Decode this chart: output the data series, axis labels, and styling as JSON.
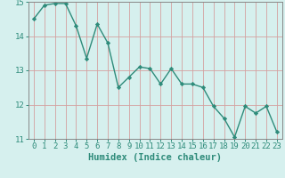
{
  "x": [
    0,
    1,
    2,
    3,
    4,
    5,
    6,
    7,
    8,
    9,
    10,
    11,
    12,
    13,
    14,
    15,
    16,
    17,
    18,
    19,
    20,
    21,
    22,
    23
  ],
  "y": [
    14.5,
    14.9,
    14.95,
    14.95,
    14.3,
    13.35,
    14.35,
    13.8,
    12.5,
    12.8,
    13.1,
    13.05,
    12.6,
    13.05,
    12.6,
    12.6,
    12.5,
    11.95,
    11.6,
    11.05,
    11.95,
    11.75,
    11.95,
    11.2
  ],
  "line_color": "#2e8b7a",
  "marker": "D",
  "marker_size": 2.2,
  "bg_color": "#d6f0ee",
  "grid_color": "#c8d8d6",
  "xlabel": "Humidex (Indice chaleur)",
  "ylim": [
    11,
    15
  ],
  "xlim": [
    -0.5,
    23.5
  ],
  "yticks": [
    11,
    12,
    13,
    14,
    15
  ],
  "xticks": [
    0,
    1,
    2,
    3,
    4,
    5,
    6,
    7,
    8,
    9,
    10,
    11,
    12,
    13,
    14,
    15,
    16,
    17,
    18,
    19,
    20,
    21,
    22,
    23
  ],
  "axis_color": "#888888",
  "tick_color": "#2e8b7a",
  "xlabel_fontsize": 7.5,
  "tick_fontsize": 6.5,
  "line_width": 1.0
}
